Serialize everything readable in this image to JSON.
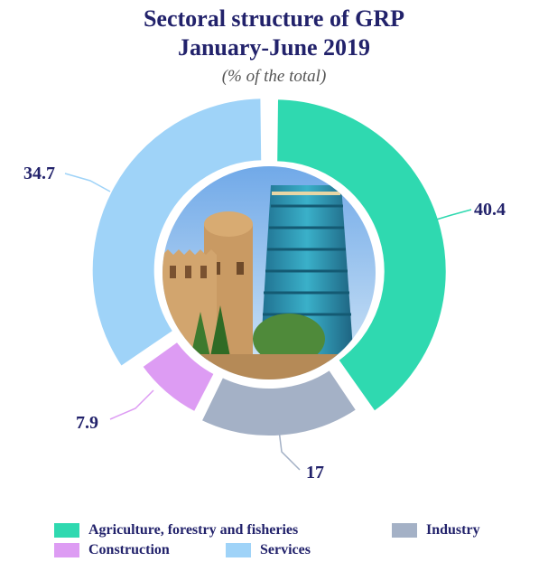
{
  "chart_data": {
    "type": "pie",
    "title": "Sectoral structure of GRP",
    "title_line2": "January-June 2019",
    "subtitle": "(% of the total)",
    "slices": [
      {
        "name": "Agriculture, forestry and fisheries",
        "value": 40.4,
        "label": "40.4",
        "color": "#2fd9b0"
      },
      {
        "name": "Industry",
        "value": 17,
        "label": "17",
        "color": "#a4b1c6"
      },
      {
        "name": "Construction",
        "value": 7.9,
        "label": "7.9",
        "color": "#dd9cf3"
      },
      {
        "name": "Services",
        "value": 34.7,
        "label": "34.7",
        "color": "#9fd3f8"
      }
    ],
    "legend_placement": "bottom",
    "style": "donut with exploded slices, center photo of Khiva minaret and walls"
  }
}
